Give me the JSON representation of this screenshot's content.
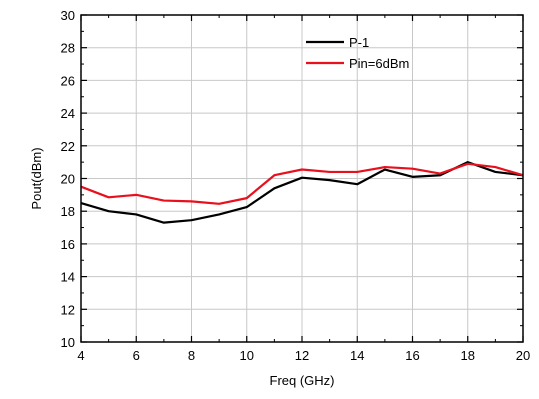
{
  "chart_data": {
    "type": "line",
    "title": "",
    "xlabel": "Freq (GHz)",
    "ylabel": "Pout(dBm)",
    "xlim": [
      4,
      20
    ],
    "ylim": [
      10,
      30
    ],
    "x_ticks": [
      "4",
      "6",
      "8",
      "10",
      "12",
      "14",
      "16",
      "18",
      "20"
    ],
    "y_ticks": [
      "10",
      "12",
      "14",
      "16",
      "18",
      "20",
      "22",
      "24",
      "26",
      "28",
      "30"
    ],
    "grid": true,
    "legend_position": "top-center",
    "x": [
      4,
      5,
      6,
      7,
      8,
      9,
      10,
      11,
      12,
      13,
      14,
      15,
      16,
      17,
      18,
      19,
      20
    ],
    "series": [
      {
        "name": "P-1",
        "color": "#000000",
        "values": [
          18.5,
          18.0,
          17.8,
          17.3,
          17.45,
          17.8,
          18.25,
          19.4,
          20.05,
          19.9,
          19.65,
          20.55,
          20.1,
          20.2,
          21.0,
          20.4,
          20.2
        ]
      },
      {
        "name": "Pin=6dBm",
        "color": "#e8101c",
        "values": [
          19.5,
          18.85,
          19.0,
          18.65,
          18.6,
          18.45,
          18.8,
          20.2,
          20.55,
          20.4,
          20.4,
          20.7,
          20.6,
          20.3,
          20.9,
          20.7,
          20.2
        ]
      }
    ]
  }
}
